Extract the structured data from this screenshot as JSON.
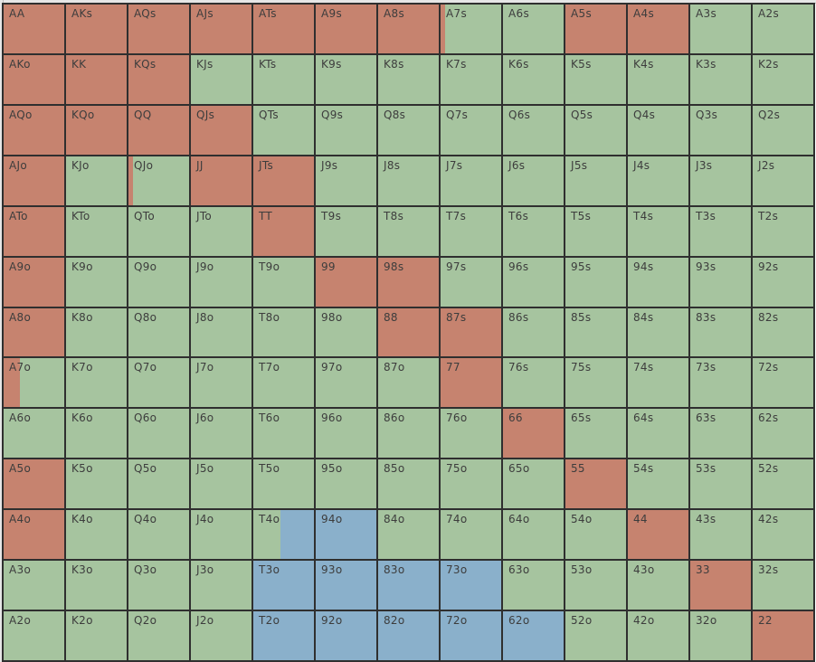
{
  "colors": {
    "raise": "#c6836f",
    "fold": "#a6c49f",
    "call": "#8ab0cb"
  },
  "hand_grid": {
    "rows": [
      [
        {
          "label": "AA",
          "action": "raise"
        },
        {
          "label": "AKs",
          "action": "raise"
        },
        {
          "label": "AQs",
          "action": "raise"
        },
        {
          "label": "AJs",
          "action": "raise"
        },
        {
          "label": "ATs",
          "action": "raise"
        },
        {
          "label": "A9s",
          "action": "raise"
        },
        {
          "label": "A8s",
          "action": "raise"
        },
        {
          "label": "A7s",
          "action": "fold",
          "raise_fraction": 0.08
        },
        {
          "label": "A6s",
          "action": "fold"
        },
        {
          "label": "A5s",
          "action": "raise"
        },
        {
          "label": "A4s",
          "action": "raise"
        },
        {
          "label": "A3s",
          "action": "fold"
        },
        {
          "label": "A2s",
          "action": "fold"
        }
      ],
      [
        {
          "label": "AKo",
          "action": "raise"
        },
        {
          "label": "KK",
          "action": "raise"
        },
        {
          "label": "KQs",
          "action": "raise"
        },
        {
          "label": "KJs",
          "action": "fold"
        },
        {
          "label": "KTs",
          "action": "fold"
        },
        {
          "label": "K9s",
          "action": "fold"
        },
        {
          "label": "K8s",
          "action": "fold"
        },
        {
          "label": "K7s",
          "action": "fold"
        },
        {
          "label": "K6s",
          "action": "fold"
        },
        {
          "label": "K5s",
          "action": "fold"
        },
        {
          "label": "K4s",
          "action": "fold"
        },
        {
          "label": "K3s",
          "action": "fold"
        },
        {
          "label": "K2s",
          "action": "fold"
        }
      ],
      [
        {
          "label": "AQo",
          "action": "raise"
        },
        {
          "label": "KQo",
          "action": "raise"
        },
        {
          "label": "QQ",
          "action": "raise"
        },
        {
          "label": "QJs",
          "action": "raise"
        },
        {
          "label": "QTs",
          "action": "fold"
        },
        {
          "label": "Q9s",
          "action": "fold"
        },
        {
          "label": "Q8s",
          "action": "fold"
        },
        {
          "label": "Q7s",
          "action": "fold"
        },
        {
          "label": "Q6s",
          "action": "fold"
        },
        {
          "label": "Q5s",
          "action": "fold"
        },
        {
          "label": "Q4s",
          "action": "fold"
        },
        {
          "label": "Q3s",
          "action": "fold"
        },
        {
          "label": "Q2s",
          "action": "fold"
        }
      ],
      [
        {
          "label": "AJo",
          "action": "raise"
        },
        {
          "label": "KJo",
          "action": "fold"
        },
        {
          "label": "QJo",
          "action": "fold",
          "raise_fraction": 0.07
        },
        {
          "label": "JJ",
          "action": "raise"
        },
        {
          "label": "JTs",
          "action": "raise"
        },
        {
          "label": "J9s",
          "action": "fold"
        },
        {
          "label": "J8s",
          "action": "fold"
        },
        {
          "label": "J7s",
          "action": "fold"
        },
        {
          "label": "J6s",
          "action": "fold"
        },
        {
          "label": "J5s",
          "action": "fold"
        },
        {
          "label": "J4s",
          "action": "fold"
        },
        {
          "label": "J3s",
          "action": "fold"
        },
        {
          "label": "J2s",
          "action": "fold"
        }
      ],
      [
        {
          "label": "ATo",
          "action": "raise"
        },
        {
          "label": "KTo",
          "action": "fold"
        },
        {
          "label": "QTo",
          "action": "fold"
        },
        {
          "label": "JTo",
          "action": "fold"
        },
        {
          "label": "TT",
          "action": "raise"
        },
        {
          "label": "T9s",
          "action": "fold"
        },
        {
          "label": "T8s",
          "action": "fold"
        },
        {
          "label": "T7s",
          "action": "fold"
        },
        {
          "label": "T6s",
          "action": "fold"
        },
        {
          "label": "T5s",
          "action": "fold"
        },
        {
          "label": "T4s",
          "action": "fold"
        },
        {
          "label": "T3s",
          "action": "fold"
        },
        {
          "label": "T2s",
          "action": "fold"
        }
      ],
      [
        {
          "label": "A9o",
          "action": "raise"
        },
        {
          "label": "K9o",
          "action": "fold"
        },
        {
          "label": "Q9o",
          "action": "fold"
        },
        {
          "label": "J9o",
          "action": "fold"
        },
        {
          "label": "T9o",
          "action": "fold"
        },
        {
          "label": "99",
          "action": "raise"
        },
        {
          "label": "98s",
          "action": "raise"
        },
        {
          "label": "97s",
          "action": "fold"
        },
        {
          "label": "96s",
          "action": "fold"
        },
        {
          "label": "95s",
          "action": "fold"
        },
        {
          "label": "94s",
          "action": "fold"
        },
        {
          "label": "93s",
          "action": "fold"
        },
        {
          "label": "92s",
          "action": "fold"
        }
      ],
      [
        {
          "label": "A8o",
          "action": "raise"
        },
        {
          "label": "K8o",
          "action": "fold"
        },
        {
          "label": "Q8o",
          "action": "fold"
        },
        {
          "label": "J8o",
          "action": "fold"
        },
        {
          "label": "T8o",
          "action": "fold"
        },
        {
          "label": "98o",
          "action": "fold"
        },
        {
          "label": "88",
          "action": "raise"
        },
        {
          "label": "87s",
          "action": "raise"
        },
        {
          "label": "86s",
          "action": "fold"
        },
        {
          "label": "85s",
          "action": "fold"
        },
        {
          "label": "84s",
          "action": "fold"
        },
        {
          "label": "83s",
          "action": "fold"
        },
        {
          "label": "82s",
          "action": "fold"
        }
      ],
      [
        {
          "label": "A7o",
          "action": "fold",
          "raise_fraction": 0.27
        },
        {
          "label": "K7o",
          "action": "fold"
        },
        {
          "label": "Q7o",
          "action": "fold"
        },
        {
          "label": "J7o",
          "action": "fold"
        },
        {
          "label": "T7o",
          "action": "fold"
        },
        {
          "label": "97o",
          "action": "fold"
        },
        {
          "label": "87o",
          "action": "fold"
        },
        {
          "label": "77",
          "action": "raise"
        },
        {
          "label": "76s",
          "action": "fold"
        },
        {
          "label": "75s",
          "action": "fold"
        },
        {
          "label": "74s",
          "action": "fold"
        },
        {
          "label": "73s",
          "action": "fold"
        },
        {
          "label": "72s",
          "action": "fold"
        }
      ],
      [
        {
          "label": "A6o",
          "action": "fold"
        },
        {
          "label": "K6o",
          "action": "fold"
        },
        {
          "label": "Q6o",
          "action": "fold"
        },
        {
          "label": "J6o",
          "action": "fold"
        },
        {
          "label": "T6o",
          "action": "fold"
        },
        {
          "label": "96o",
          "action": "fold"
        },
        {
          "label": "86o",
          "action": "fold"
        },
        {
          "label": "76o",
          "action": "fold"
        },
        {
          "label": "66",
          "action": "raise"
        },
        {
          "label": "65s",
          "action": "fold"
        },
        {
          "label": "64s",
          "action": "fold"
        },
        {
          "label": "63s",
          "action": "fold"
        },
        {
          "label": "62s",
          "action": "fold"
        }
      ],
      [
        {
          "label": "A5o",
          "action": "raise"
        },
        {
          "label": "K5o",
          "action": "fold"
        },
        {
          "label": "Q5o",
          "action": "fold"
        },
        {
          "label": "J5o",
          "action": "fold"
        },
        {
          "label": "T5o",
          "action": "fold"
        },
        {
          "label": "95o",
          "action": "fold"
        },
        {
          "label": "85o",
          "action": "fold"
        },
        {
          "label": "75o",
          "action": "fold"
        },
        {
          "label": "65o",
          "action": "fold"
        },
        {
          "label": "55",
          "action": "raise"
        },
        {
          "label": "54s",
          "action": "fold"
        },
        {
          "label": "53s",
          "action": "fold"
        },
        {
          "label": "52s",
          "action": "fold"
        }
      ],
      [
        {
          "label": "A4o",
          "action": "raise"
        },
        {
          "label": "K4o",
          "action": "fold"
        },
        {
          "label": "Q4o",
          "action": "fold"
        },
        {
          "label": "J4o",
          "action": "fold"
        },
        {
          "label": "T4o",
          "action": "fold",
          "call_fraction": 0.55
        },
        {
          "label": "94o",
          "action": "call"
        },
        {
          "label": "84o",
          "action": "fold"
        },
        {
          "label": "74o",
          "action": "fold"
        },
        {
          "label": "64o",
          "action": "fold"
        },
        {
          "label": "54o",
          "action": "fold"
        },
        {
          "label": "44",
          "action": "raise"
        },
        {
          "label": "43s",
          "action": "fold"
        },
        {
          "label": "42s",
          "action": "fold"
        }
      ],
      [
        {
          "label": "A3o",
          "action": "fold"
        },
        {
          "label": "K3o",
          "action": "fold"
        },
        {
          "label": "Q3o",
          "action": "fold"
        },
        {
          "label": "J3o",
          "action": "fold"
        },
        {
          "label": "T3o",
          "action": "call"
        },
        {
          "label": "93o",
          "action": "call"
        },
        {
          "label": "83o",
          "action": "call"
        },
        {
          "label": "73o",
          "action": "call"
        },
        {
          "label": "63o",
          "action": "fold"
        },
        {
          "label": "53o",
          "action": "fold"
        },
        {
          "label": "43o",
          "action": "fold"
        },
        {
          "label": "33",
          "action": "raise"
        },
        {
          "label": "32s",
          "action": "fold"
        }
      ],
      [
        {
          "label": "A2o",
          "action": "fold"
        },
        {
          "label": "K2o",
          "action": "fold"
        },
        {
          "label": "Q2o",
          "action": "fold"
        },
        {
          "label": "J2o",
          "action": "fold"
        },
        {
          "label": "T2o",
          "action": "call"
        },
        {
          "label": "92o",
          "action": "call"
        },
        {
          "label": "82o",
          "action": "call"
        },
        {
          "label": "72o",
          "action": "call"
        },
        {
          "label": "62o",
          "action": "call"
        },
        {
          "label": "52o",
          "action": "fold"
        },
        {
          "label": "42o",
          "action": "fold"
        },
        {
          "label": "32o",
          "action": "fold"
        },
        {
          "label": "22",
          "action": "raise"
        }
      ]
    ]
  }
}
